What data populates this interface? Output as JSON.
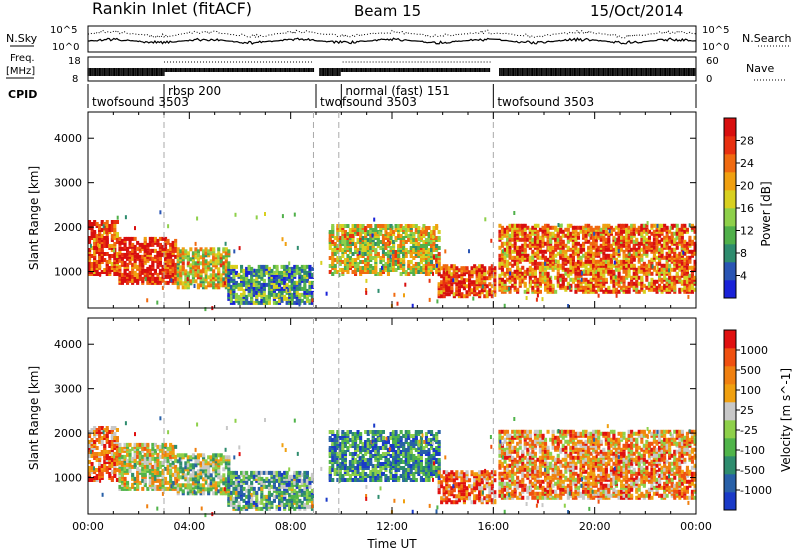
{
  "header": {
    "title": "Rankin Inlet (fitACF)",
    "beam": "Beam 15",
    "date": "15/Oct/2014"
  },
  "status_panels": {
    "nsky_label": "N.Sky",
    "nsearch_label": "N.Search",
    "nsky_ticks": [
      "10^5",
      "10^0"
    ],
    "nsearch_ticks": [
      "10^5",
      "10^0"
    ],
    "freq_label_1": "Freq.",
    "freq_label_2": "[MHz]",
    "freq_ticks": [
      "18",
      "8"
    ],
    "nave_label": "Nave",
    "nave_ticks": [
      "60",
      "0"
    ],
    "cpid_label": "CPID",
    "cpid_segments": [
      {
        "label": "twofsound  3503",
        "start_h": 0.0,
        "end_h": 9.0,
        "row": "lower"
      },
      {
        "label": "rbsp  200",
        "start_h": 3.0,
        "end_h": 9.0,
        "row": "upper"
      },
      {
        "label": "twofsound  3503",
        "start_h": 9.0,
        "end_h": 10.0,
        "row": "lower"
      },
      {
        "label": "normal  (fast)  151",
        "start_h": 10.0,
        "end_h": 16.0,
        "row": "upper"
      },
      {
        "label": "twofsound  3503",
        "start_h": 16.0,
        "end_h": 24.0,
        "row": "lower"
      }
    ]
  },
  "chart_data": [
    {
      "type": "heatmap",
      "name": "power",
      "ylabel": "Slant Range [km]",
      "yticks": [
        1000,
        2000,
        3000,
        4000
      ],
      "xlim_hours": [
        0,
        24
      ],
      "ylim_km": [
        180,
        4590
      ],
      "colorbar": {
        "label": "Power [dB]",
        "ticks": [
          "4",
          "8",
          "12",
          "16",
          "20",
          "24",
          "28"
        ],
        "colors": [
          "#1a22d8",
          "#2a55b4",
          "#2e8c6e",
          "#50b04a",
          "#8ed04a",
          "#d8d020",
          "#f0a010",
          "#f06a10",
          "#e83010",
          "#d80f0f"
        ]
      },
      "echo_regions": [
        {
          "t": [
            0.0,
            1.2
          ],
          "r": [
            900,
            2100
          ],
          "level": 0.85
        },
        {
          "t": [
            1.2,
            3.5
          ],
          "r": [
            700,
            1700
          ],
          "level": 0.9
        },
        {
          "t": [
            3.5,
            5.5
          ],
          "r": [
            600,
            1500
          ],
          "level": 0.55
        },
        {
          "t": [
            5.5,
            8.8
          ],
          "r": [
            250,
            1100
          ],
          "level": 0.3
        },
        {
          "t": [
            9.5,
            13.8
          ],
          "r": [
            900,
            2000
          ],
          "level": 0.55
        },
        {
          "t": [
            13.8,
            16.0
          ],
          "r": [
            400,
            1100
          ],
          "level": 0.85
        },
        {
          "t": [
            16.2,
            24.0
          ],
          "r": [
            500,
            2000
          ],
          "level": 0.75
        }
      ]
    },
    {
      "type": "heatmap",
      "name": "velocity",
      "ylabel": "Slant Range [km]",
      "xlabel": "Time UT",
      "xticks": [
        "00:00",
        "04:00",
        "08:00",
        "12:00",
        "16:00",
        "20:00",
        "00:00"
      ],
      "yticks": [
        1000,
        2000,
        3000,
        4000
      ],
      "xlim_hours": [
        0,
        24
      ],
      "ylim_km": [
        180,
        4590
      ],
      "colorbar": {
        "label": "Velocity  [m s^-1]",
        "ticks": [
          "1000",
          "500",
          "100",
          "25",
          "-25",
          "-100",
          "-500",
          "-1000"
        ],
        "colors": [
          "#1a3ac8",
          "#2860a8",
          "#2e8c6e",
          "#50b44a",
          "#8ed04a",
          "#c8c8c8",
          "#f0a010",
          "#f08010",
          "#f05010",
          "#e01010"
        ]
      },
      "echo_regions": [
        {
          "t": [
            0.0,
            1.2
          ],
          "r": [
            900,
            2100
          ],
          "level": 0.8
        },
        {
          "t": [
            1.2,
            3.5
          ],
          "r": [
            700,
            1700
          ],
          "level": 0.55
        },
        {
          "t": [
            3.5,
            5.5
          ],
          "r": [
            600,
            1500
          ],
          "level": 0.45
        },
        {
          "t": [
            5.5,
            8.8
          ],
          "r": [
            250,
            1100
          ],
          "level": 0.35
        },
        {
          "t": [
            9.5,
            13.8
          ],
          "r": [
            900,
            2000
          ],
          "level": 0.25
        },
        {
          "t": [
            13.8,
            16.0
          ],
          "r": [
            400,
            1100
          ],
          "level": 0.8
        },
        {
          "t": [
            16.2,
            24.0
          ],
          "r": [
            500,
            2000
          ],
          "level": 0.7
        }
      ]
    }
  ],
  "dashed_times_h": [
    3.0,
    8.9,
    9.9,
    16.0
  ]
}
